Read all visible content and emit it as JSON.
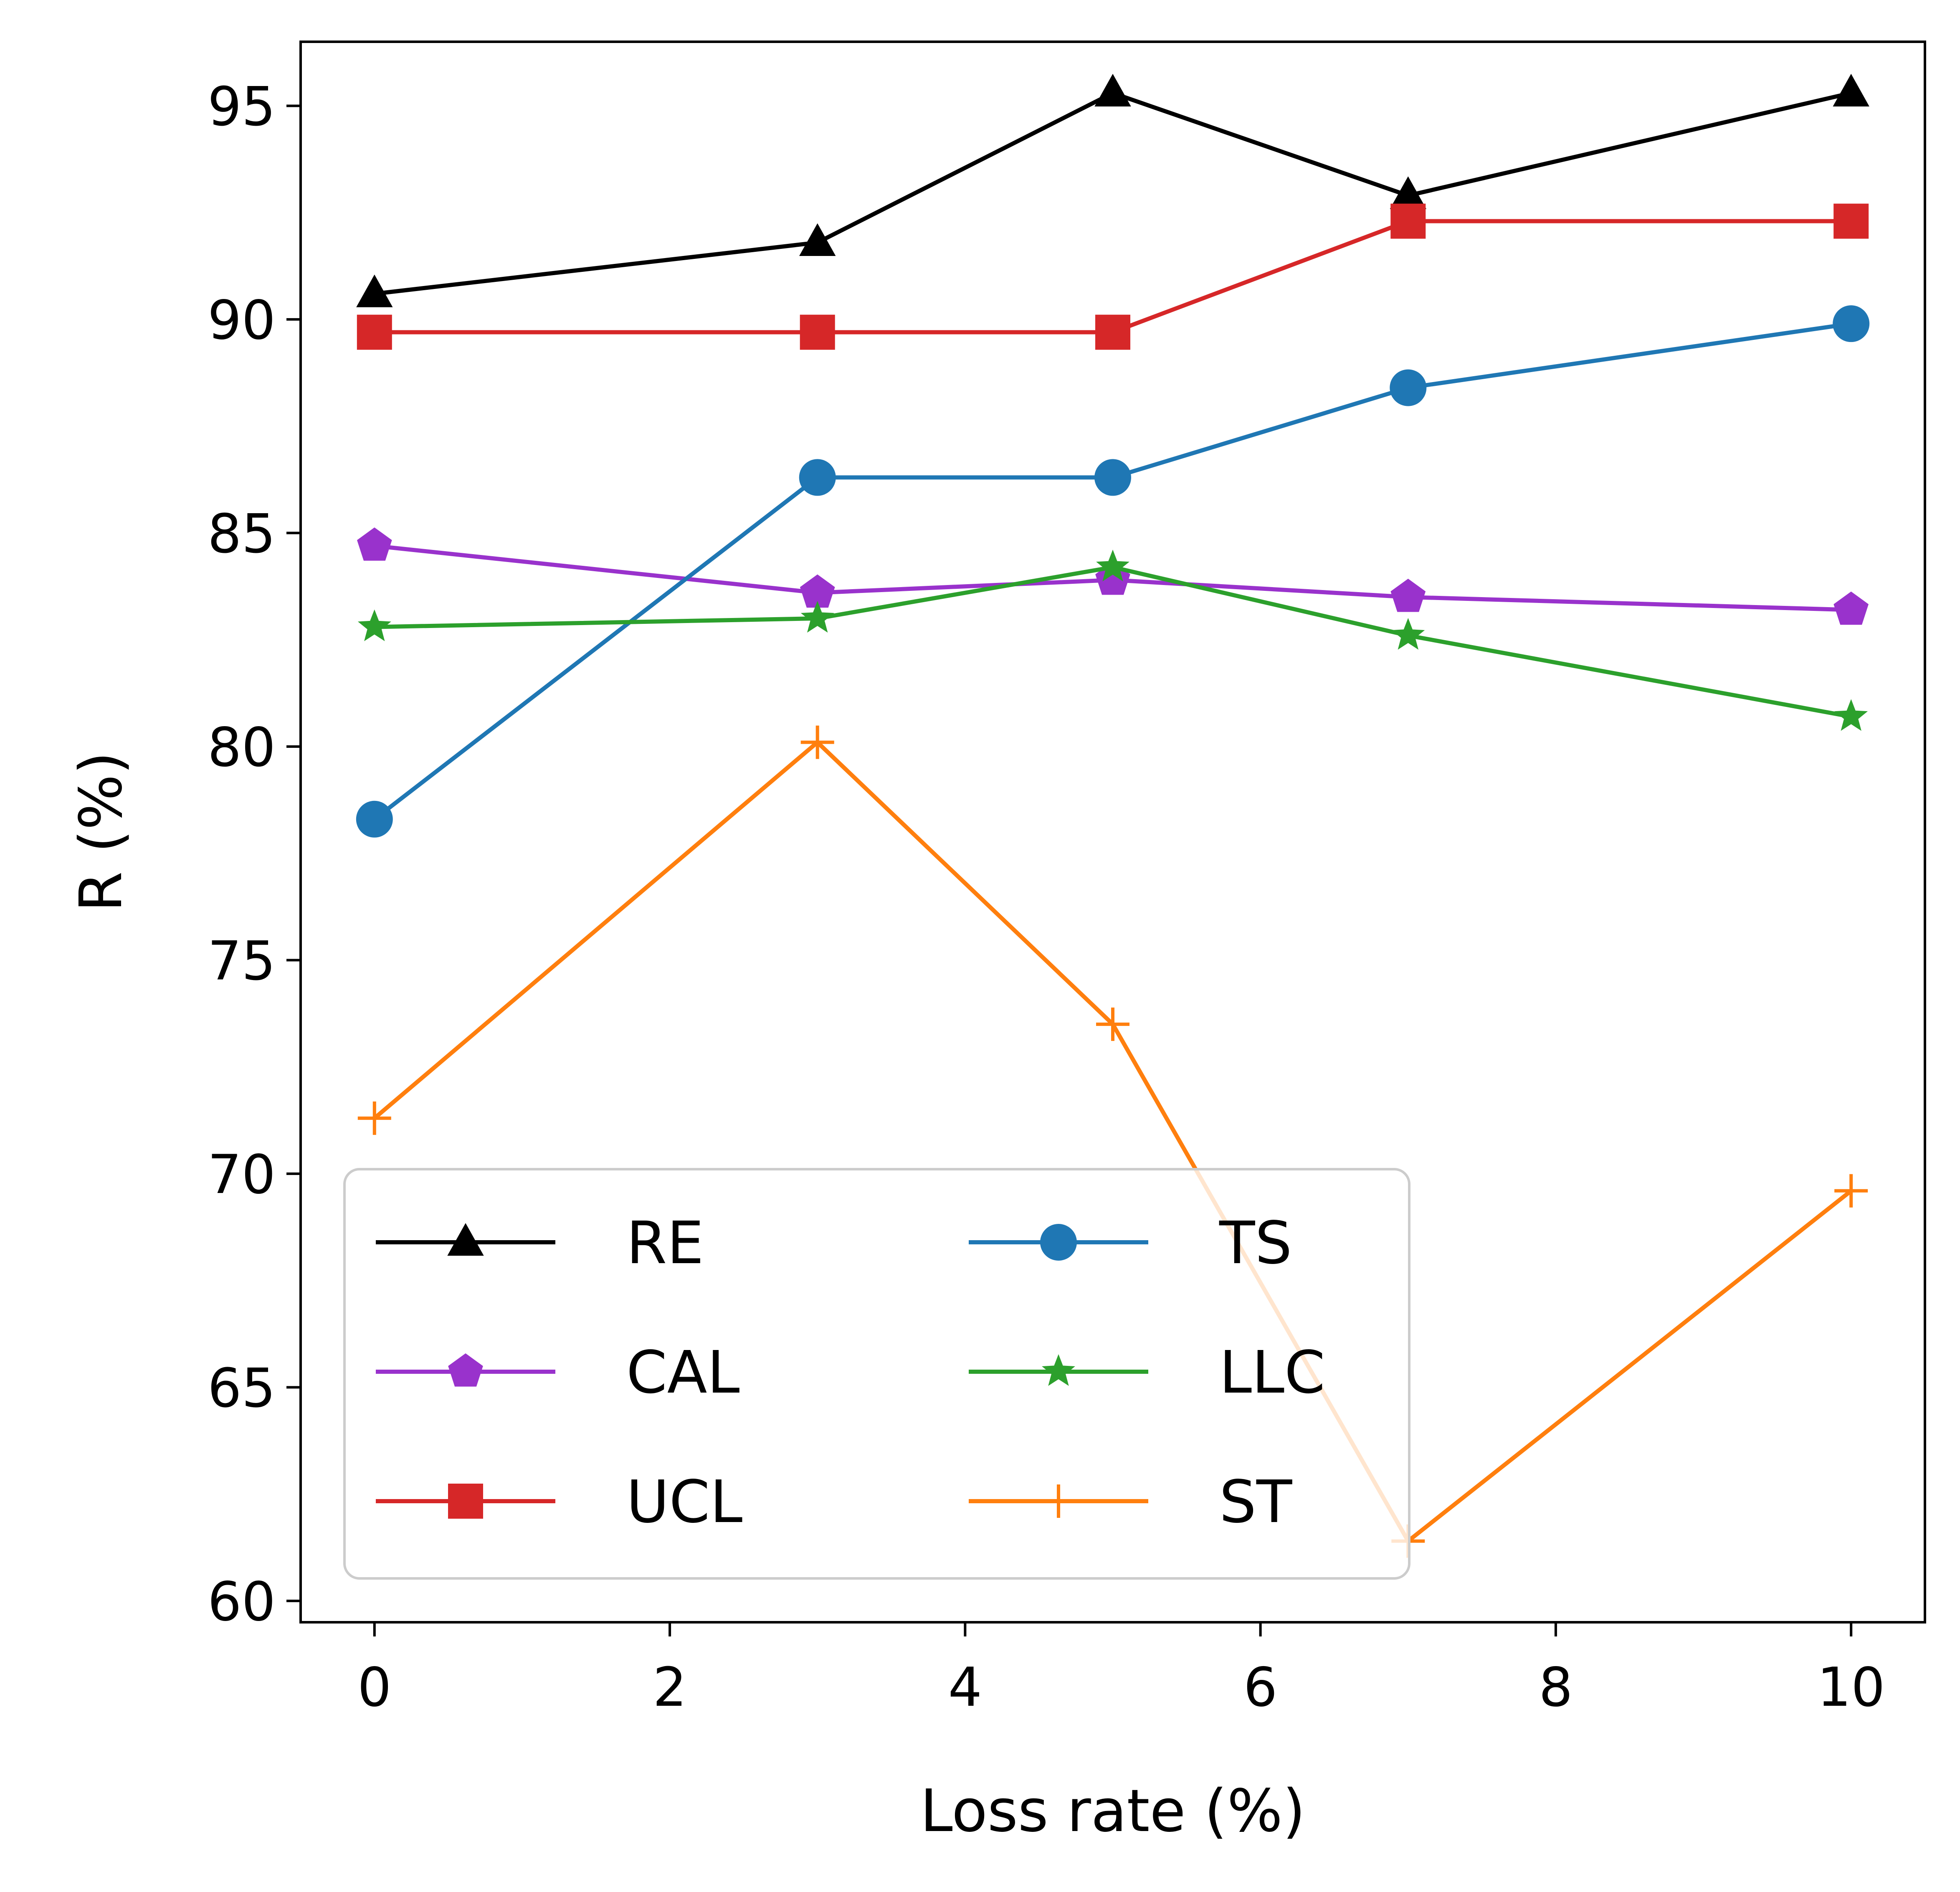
{
  "chart_data": {
    "type": "line",
    "title": "",
    "xlabel": "Loss rate (%)",
    "ylabel": "R (%)",
    "xlim": [
      -0.5,
      10.5
    ],
    "ylim": [
      59.5,
      96.5
    ],
    "xticks": [
      0,
      2,
      4,
      6,
      8,
      10
    ],
    "yticks": [
      60,
      65,
      70,
      75,
      80,
      85,
      90,
      95
    ],
    "grid": false,
    "legend_placement": "lower-left",
    "legend_columns": 2,
    "x": [
      0,
      3,
      5,
      7,
      10
    ],
    "series": [
      {
        "name": "RE",
        "color": "#000000",
        "marker": "triangle",
        "values": [
          90.6,
          91.8,
          95.3,
          92.9,
          95.3
        ]
      },
      {
        "name": "CAL",
        "color": "#9932cc",
        "marker": "pentagon",
        "values": [
          84.7,
          83.6,
          83.9,
          83.5,
          83.2
        ]
      },
      {
        "name": "UCL",
        "color": "#d62728",
        "marker": "square",
        "values": [
          89.7,
          89.7,
          89.7,
          92.3,
          92.3
        ]
      },
      {
        "name": "TS",
        "color": "#1f77b4",
        "marker": "circle",
        "values": [
          78.3,
          86.3,
          86.3,
          88.4,
          89.9
        ]
      },
      {
        "name": "LLC",
        "color": "#2ca02c",
        "marker": "star",
        "values": [
          82.8,
          83.0,
          84.2,
          82.6,
          80.7
        ]
      },
      {
        "name": "ST",
        "color": "#ff7f0e",
        "marker": "plus",
        "values": [
          71.3,
          80.1,
          73.5,
          61.4,
          69.6
        ]
      }
    ]
  }
}
